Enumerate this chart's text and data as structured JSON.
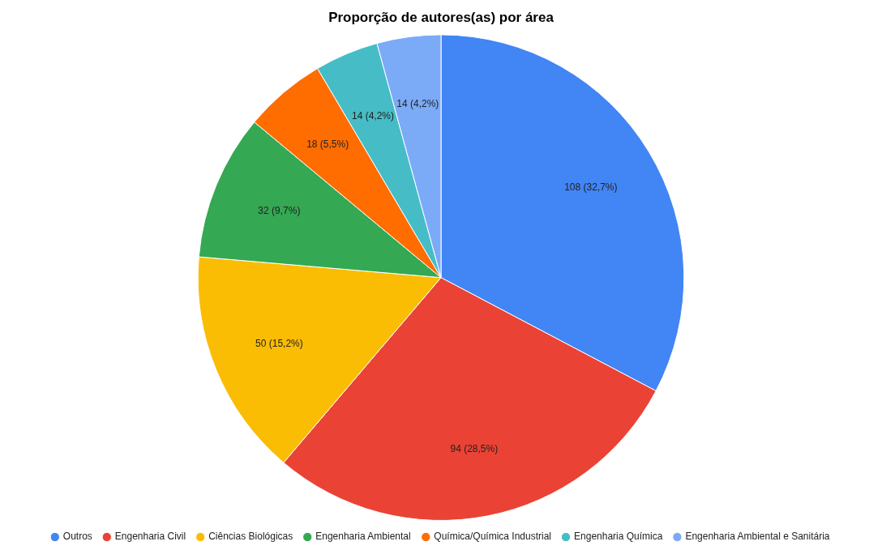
{
  "chart_data": {
    "type": "pie",
    "title": "Proporção de autores(as) por área",
    "categories": [
      "Outros",
      "Engenharia Civil",
      "Ciências Biológicas",
      "Engenharia Ambiental",
      "Química/Química Industrial",
      "Engenharia Química",
      "Engenharia Ambiental e Sanitária"
    ],
    "values": [
      108,
      94,
      50,
      32,
      18,
      14,
      14
    ],
    "value_labels": [
      "108 (32,7%)",
      "94 (28,5%)",
      "50 (15,2%)",
      "32 (9,7%)",
      "18 (5,5%)",
      "14 (4,2%)",
      "14 (4,2%)"
    ],
    "colors": [
      "#4285f4",
      "#ea4335",
      "#fbbc04",
      "#34a853",
      "#ff6d01",
      "#46bdc6",
      "#7baaf7"
    ],
    "legend": "bottom"
  }
}
